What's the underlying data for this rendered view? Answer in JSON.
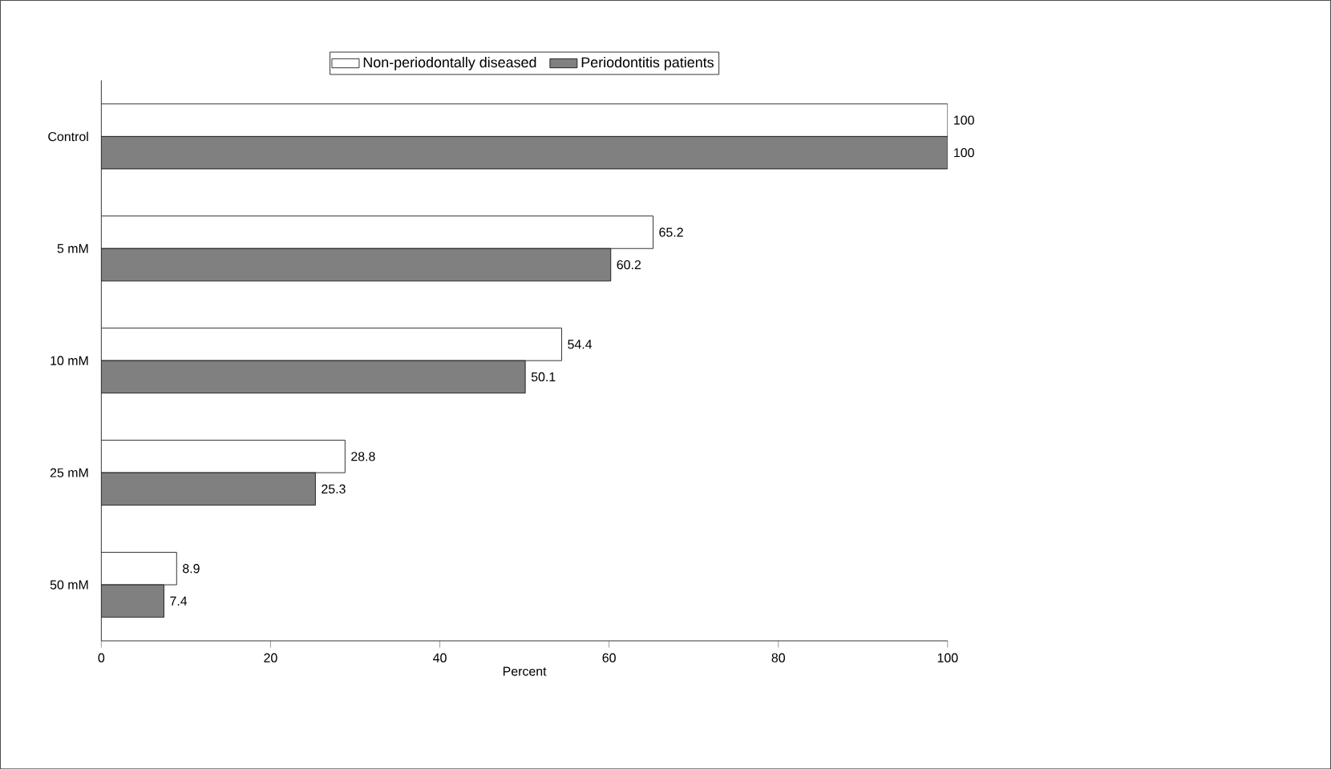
{
  "chart_data": {
    "type": "bar",
    "orientation": "horizontal",
    "xlabel": "Percent",
    "categories": [
      "Control",
      "5 mM",
      "10 mM",
      "25 mM",
      "50 mM"
    ],
    "series": [
      {
        "name": "Non-periodontally diseased",
        "color": "#ffffff",
        "values": [
          100,
          65.2,
          54.4,
          28.8,
          8.9
        ]
      },
      {
        "name": "Periodontitis patients",
        "color": "#808080",
        "values": [
          100,
          60.2,
          50.1,
          25.3,
          7.4
        ]
      }
    ],
    "xlim": [
      0,
      100
    ],
    "xticks": [
      0,
      20,
      40,
      60,
      80,
      100
    ],
    "data_labels": true,
    "legend": "top",
    "grid": false
  }
}
